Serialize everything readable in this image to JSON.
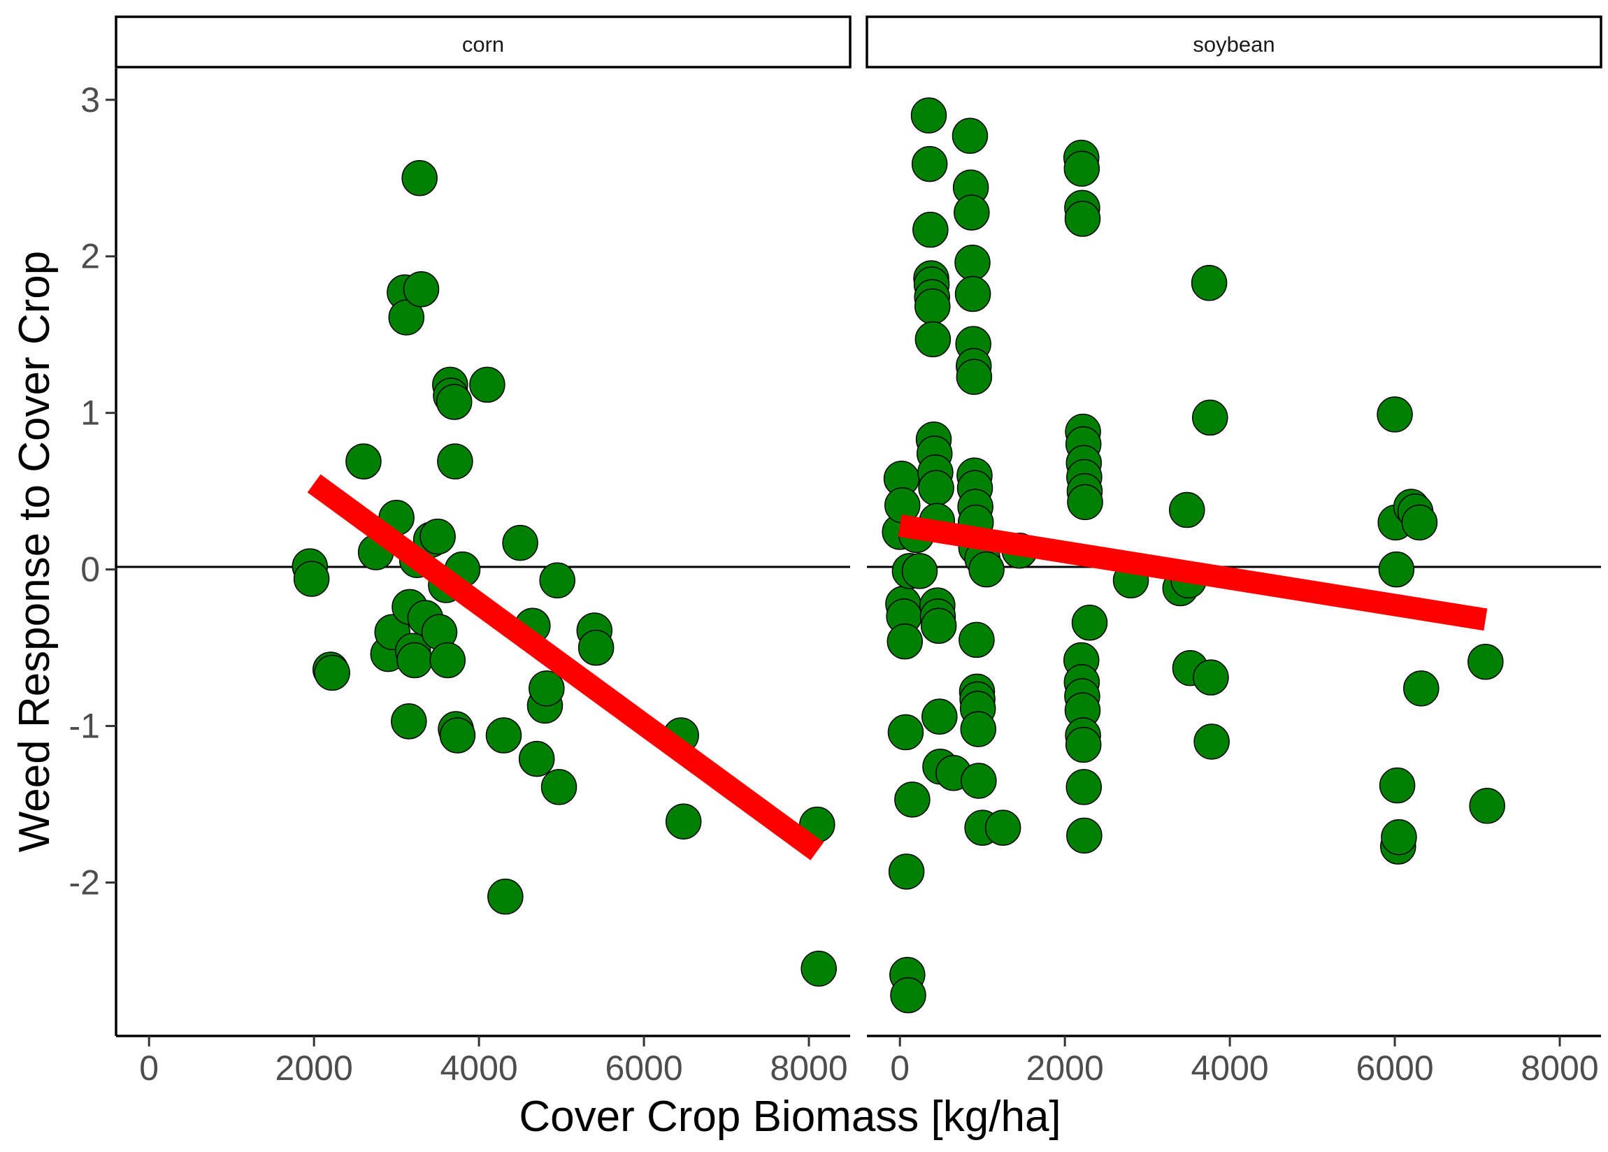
{
  "chart_data": {
    "type": "scatter",
    "xlabel": "Cover Crop Biomass [kg/ha]",
    "ylabel": "Weed Response to Cover Crop",
    "xlim": [
      -400,
      8500
    ],
    "ylim": [
      -2.98,
      3.2
    ],
    "x_ticks": [
      "0",
      "2000",
      "4000",
      "6000",
      "8000"
    ],
    "y_ticks": [
      "-2",
      "-1",
      "0",
      "1",
      "2",
      "3"
    ],
    "reference_line_y": 0,
    "point_color": "#008000",
    "trend_color": "#ff0000",
    "panels": [
      {
        "label": "corn",
        "trend": {
          "x": [
            2000,
            8100
          ],
          "y": [
            0.55,
            -1.8
          ]
        },
        "points": [
          [
            1950,
            0.02
          ],
          [
            1970,
            -0.06
          ],
          [
            2200,
            -0.64
          ],
          [
            2220,
            -0.66
          ],
          [
            2600,
            0.69
          ],
          [
            2750,
            0.11
          ],
          [
            2900,
            -0.54
          ],
          [
            2950,
            -0.4
          ],
          [
            3000,
            0.33
          ],
          [
            3100,
            1.77
          ],
          [
            3120,
            1.61
          ],
          [
            3150,
            -0.97
          ],
          [
            3160,
            -0.24
          ],
          [
            3200,
            -0.52
          ],
          [
            3220,
            -0.58
          ],
          [
            3250,
            0.06
          ],
          [
            3280,
            2.5
          ],
          [
            3300,
            1.79
          ],
          [
            3350,
            -0.31
          ],
          [
            3420,
            0.19
          ],
          [
            3500,
            0.21
          ],
          [
            3520,
            -0.4
          ],
          [
            3600,
            -0.1
          ],
          [
            3620,
            -0.58
          ],
          [
            3650,
            1.18
          ],
          [
            3660,
            1.11
          ],
          [
            3700,
            1.07
          ],
          [
            3710,
            0.69
          ],
          [
            3720,
            -1.02
          ],
          [
            3740,
            -1.06
          ],
          [
            3800,
            0.0
          ],
          [
            4100,
            1.18
          ],
          [
            4300,
            -1.06
          ],
          [
            4320,
            -2.09
          ],
          [
            4500,
            0.17
          ],
          [
            4650,
            -0.36
          ],
          [
            4700,
            -1.21
          ],
          [
            4800,
            -0.87
          ],
          [
            4820,
            -0.76
          ],
          [
            4950,
            -0.07
          ],
          [
            4970,
            -1.39
          ],
          [
            5400,
            -0.39
          ],
          [
            5420,
            -0.5
          ],
          [
            6450,
            -1.06
          ],
          [
            6480,
            -1.61
          ],
          [
            8100,
            -1.63
          ],
          [
            8120,
            -2.55
          ]
        ]
      },
      {
        "label": "soybean",
        "trend": {
          "x": [
            0,
            7100
          ],
          "y": [
            0.28,
            -0.32
          ]
        },
        "points": [
          [
            0,
            0.24
          ],
          [
            20,
            0.58
          ],
          [
            30,
            0.41
          ],
          [
            40,
            -0.22
          ],
          [
            50,
            -0.3
          ],
          [
            60,
            -0.46
          ],
          [
            70,
            -1.04
          ],
          [
            80,
            -1.93
          ],
          [
            90,
            -2.59
          ],
          [
            100,
            -2.72
          ],
          [
            120,
            -0.01
          ],
          [
            150,
            -1.47
          ],
          [
            200,
            0.22
          ],
          [
            240,
            -0.01
          ],
          [
            350,
            2.9
          ],
          [
            360,
            2.59
          ],
          [
            370,
            2.17
          ],
          [
            380,
            1.86
          ],
          [
            385,
            1.82
          ],
          [
            390,
            1.74
          ],
          [
            395,
            1.68
          ],
          [
            400,
            1.47
          ],
          [
            410,
            0.83
          ],
          [
            420,
            0.74
          ],
          [
            430,
            0.62
          ],
          [
            440,
            0.52
          ],
          [
            450,
            0.31
          ],
          [
            455,
            -0.23
          ],
          [
            460,
            -0.3
          ],
          [
            470,
            -0.36
          ],
          [
            480,
            -0.94
          ],
          [
            490,
            -1.26
          ],
          [
            650,
            -1.3
          ],
          [
            850,
            2.77
          ],
          [
            860,
            2.44
          ],
          [
            870,
            2.28
          ],
          [
            880,
            1.96
          ],
          [
            885,
            1.76
          ],
          [
            890,
            1.44
          ],
          [
            895,
            1.3
          ],
          [
            900,
            1.23
          ],
          [
            905,
            0.6
          ],
          [
            910,
            0.52
          ],
          [
            915,
            0.4
          ],
          [
            920,
            0.3
          ],
          [
            925,
            0.14
          ],
          [
            930,
            -0.45
          ],
          [
            935,
            -0.78
          ],
          [
            940,
            -0.83
          ],
          [
            945,
            -0.89
          ],
          [
            950,
            -1.02
          ],
          [
            955,
            -1.35
          ],
          [
            1000,
            0.07
          ],
          [
            1050,
            0.0
          ],
          [
            1000,
            -1.65
          ],
          [
            1250,
            -1.65
          ],
          [
            1450,
            0.12
          ],
          [
            2200,
            2.63
          ],
          [
            2205,
            2.56
          ],
          [
            2210,
            2.31
          ],
          [
            2215,
            2.24
          ],
          [
            2220,
            0.88
          ],
          [
            2225,
            0.8
          ],
          [
            2230,
            0.68
          ],
          [
            2235,
            0.59
          ],
          [
            2240,
            0.5
          ],
          [
            2245,
            0.43
          ],
          [
            2200,
            -0.58
          ],
          [
            2205,
            -0.72
          ],
          [
            2210,
            -0.81
          ],
          [
            2215,
            -0.9
          ],
          [
            2220,
            -1.06
          ],
          [
            2225,
            -1.12
          ],
          [
            2230,
            -1.39
          ],
          [
            2235,
            -1.7
          ],
          [
            2300,
            -0.34
          ],
          [
            2800,
            -0.07
          ],
          [
            3400,
            -0.12
          ],
          [
            3480,
            0.38
          ],
          [
            3500,
            -0.07
          ],
          [
            3520,
            -0.63
          ],
          [
            3750,
            1.83
          ],
          [
            3760,
            0.97
          ],
          [
            3770,
            -0.69
          ],
          [
            3780,
            -1.1
          ],
          [
            6000,
            0.99
          ],
          [
            6010,
            0.3
          ],
          [
            6020,
            0.0
          ],
          [
            6030,
            -1.38
          ],
          [
            6040,
            -1.77
          ],
          [
            6050,
            -1.71
          ],
          [
            6200,
            0.4
          ],
          [
            6250,
            0.37
          ],
          [
            6300,
            0.3
          ],
          [
            6320,
            -0.76
          ],
          [
            7100,
            -0.59
          ],
          [
            7120,
            -1.51
          ]
        ]
      }
    ]
  }
}
